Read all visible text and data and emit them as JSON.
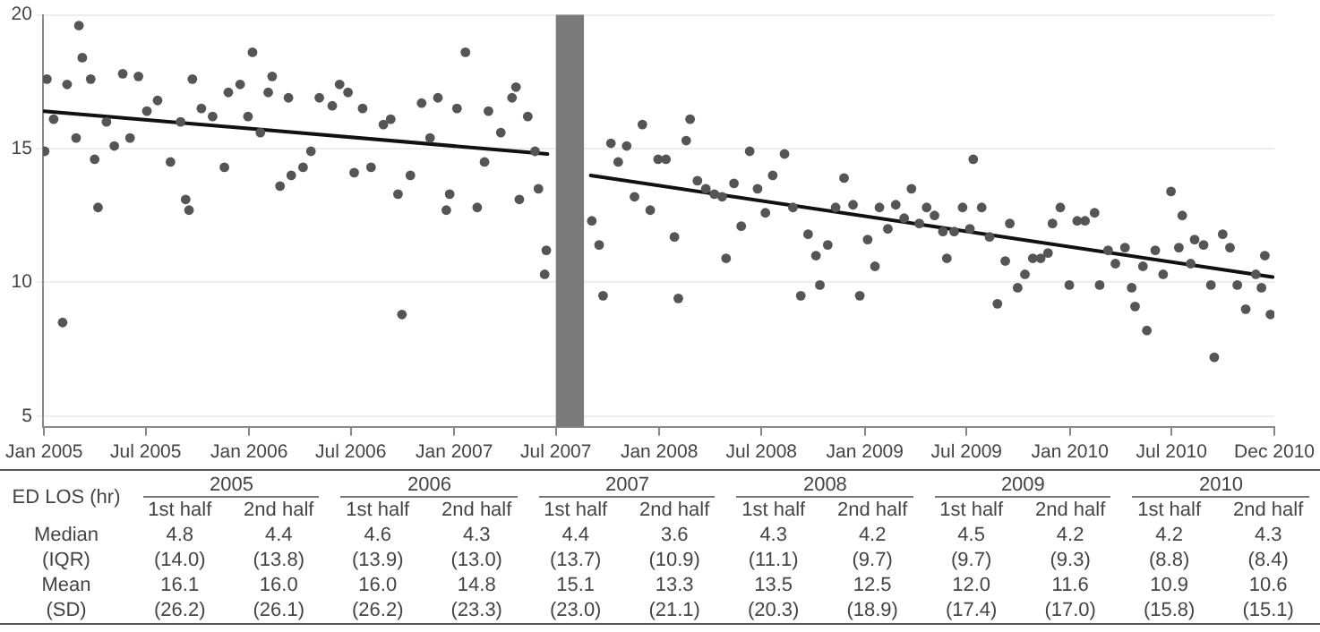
{
  "chart_data": [
    {
      "type": "scatter",
      "xlim": [
        "2004-12-30",
        "2010-12-31"
      ],
      "ylim": [
        4.6,
        20
      ],
      "yticks": [
        5,
        10,
        15,
        20
      ],
      "xticks": [
        {
          "value": "2005-01-01",
          "label": "Jan 2005"
        },
        {
          "value": "2005-07-01",
          "label": "Jul 2005"
        },
        {
          "value": "2006-01-01",
          "label": "Jan 2006"
        },
        {
          "value": "2006-07-01",
          "label": "Jul 2006"
        },
        {
          "value": "2007-01-01",
          "label": "Jan 2007"
        },
        {
          "value": "2007-07-01",
          "label": "Jul 2007"
        },
        {
          "value": "2008-01-01",
          "label": "Jan 2008"
        },
        {
          "value": "2008-07-01",
          "label": "Jul 2008"
        },
        {
          "value": "2009-01-01",
          "label": "Jan 2009"
        },
        {
          "value": "2009-07-01",
          "label": "Jul 2009"
        },
        {
          "value": "2010-01-01",
          "label": "Jan 2010"
        },
        {
          "value": "2010-07-01",
          "label": "Jul 2010"
        },
        {
          "value": "2010-12-31",
          "label": "Dec 2010"
        }
      ],
      "grid": "y",
      "marker": "circle",
      "bands": [
        {
          "axis": "x",
          "from": "2007-07-01",
          "to": "2007-08-20",
          "color": "#7a7a7a"
        }
      ],
      "series": [
        {
          "type": "scatter",
          "color": "#555555",
          "x": [
            "2005-01-02",
            "2005-01-06",
            "2005-01-18",
            "2005-02-03",
            "2005-02-11",
            "2005-02-27",
            "2005-03-04",
            "2005-03-10",
            "2005-03-25",
            "2005-04-01",
            "2005-04-07",
            "2005-04-22",
            "2005-05-06",
            "2005-05-21",
            "2005-06-03",
            "2005-06-18",
            "2005-07-03",
            "2005-07-22",
            "2005-08-14",
            "2005-09-01",
            "2005-09-10",
            "2005-09-16",
            "2005-09-22",
            "2005-10-08",
            "2005-10-28",
            "2005-11-18",
            "2005-11-25",
            "2005-12-16",
            "2005-12-30",
            "2006-01-07",
            "2006-01-21",
            "2006-02-04",
            "2006-02-11",
            "2006-02-25",
            "2006-03-12",
            "2006-03-17",
            "2006-04-07",
            "2006-04-21",
            "2006-05-06",
            "2006-05-29",
            "2006-06-11",
            "2006-06-26",
            "2006-07-07",
            "2006-07-22",
            "2006-08-06",
            "2006-08-28",
            "2006-09-10",
            "2006-09-23",
            "2006-09-30",
            "2006-10-15",
            "2006-11-04",
            "2006-11-19",
            "2006-12-03",
            "2006-12-18",
            "2006-12-24",
            "2007-01-06",
            "2007-01-21",
            "2007-02-11",
            "2007-02-24",
            "2007-03-03",
            "2007-03-25",
            "2007-04-14",
            "2007-04-21",
            "2007-04-27",
            "2007-05-12",
            "2007-05-25",
            "2007-05-31",
            "2007-06-11",
            "2007-06-14",
            "2007-09-03",
            "2007-09-16",
            "2007-09-23",
            "2007-10-07",
            "2007-10-20",
            "2007-11-04",
            "2007-11-18",
            "2007-12-02",
            "2007-12-16",
            "2007-12-30",
            "2008-01-13",
            "2008-01-28",
            "2008-02-04",
            "2008-02-18",
            "2008-02-25",
            "2008-03-09",
            "2008-03-24",
            "2008-04-08",
            "2008-04-22",
            "2008-04-29",
            "2008-05-13",
            "2008-05-26",
            "2008-06-10",
            "2008-06-24",
            "2008-07-08",
            "2008-07-21",
            "2008-08-11",
            "2008-08-26",
            "2008-09-09",
            "2008-09-22",
            "2008-10-06",
            "2008-10-13",
            "2008-10-27",
            "2008-11-10",
            "2008-11-25",
            "2008-12-11",
            "2008-12-23",
            "2009-01-06",
            "2009-01-19",
            "2009-01-27",
            "2009-02-11",
            "2009-02-25",
            "2009-03-12",
            "2009-03-25",
            "2009-04-08",
            "2009-04-21",
            "2009-05-05",
            "2009-05-20",
            "2009-05-27",
            "2009-06-09",
            "2009-06-24",
            "2009-07-07",
            "2009-07-13",
            "2009-07-28",
            "2009-08-11",
            "2009-08-25",
            "2009-09-08",
            "2009-09-16",
            "2009-09-30",
            "2009-10-13",
            "2009-10-27",
            "2009-11-10",
            "2009-11-23",
            "2009-12-01",
            "2009-12-15",
            "2009-12-31",
            "2010-01-14",
            "2010-01-28",
            "2010-02-14",
            "2010-02-23",
            "2010-03-10",
            "2010-03-23",
            "2010-04-09",
            "2010-04-21",
            "2010-04-27",
            "2010-05-11",
            "2010-05-18",
            "2010-06-02",
            "2010-06-16",
            "2010-06-30",
            "2010-07-14",
            "2010-07-20",
            "2010-08-04",
            "2010-08-11",
            "2010-08-27",
            "2010-09-09",
            "2010-09-15",
            "2010-09-30",
            "2010-10-13",
            "2010-10-26",
            "2010-11-10",
            "2010-11-28",
            "2010-12-08",
            "2010-12-14",
            "2010-12-24"
          ],
          "values": [
            14.9,
            17.6,
            16.1,
            8.5,
            17.4,
            15.4,
            19.6,
            18.4,
            17.6,
            14.6,
            12.8,
            16.0,
            15.1,
            17.8,
            15.4,
            17.7,
            16.4,
            16.8,
            14.5,
            16.0,
            13.1,
            12.7,
            17.6,
            16.5,
            16.2,
            14.3,
            17.1,
            17.4,
            16.2,
            18.6,
            15.6,
            17.1,
            17.7,
            13.6,
            16.9,
            14.0,
            14.3,
            14.9,
            16.9,
            16.6,
            17.4,
            17.1,
            14.1,
            16.5,
            14.3,
            15.9,
            16.1,
            13.3,
            8.8,
            14.0,
            16.7,
            15.4,
            16.9,
            12.7,
            13.3,
            16.5,
            18.6,
            12.8,
            14.5,
            16.4,
            15.6,
            16.9,
            17.3,
            13.1,
            16.2,
            14.9,
            13.5,
            10.3,
            11.2,
            12.3,
            11.4,
            9.5,
            15.2,
            14.5,
            15.1,
            13.2,
            15.9,
            12.7,
            14.6,
            14.6,
            11.7,
            9.4,
            15.3,
            16.1,
            13.8,
            13.5,
            13.3,
            13.2,
            10.9,
            13.7,
            12.1,
            14.9,
            13.5,
            12.6,
            14.0,
            14.8,
            12.8,
            9.5,
            11.8,
            11.0,
            9.9,
            11.4,
            12.8,
            13.9,
            12.9,
            9.5,
            11.6,
            10.6,
            12.8,
            12.0,
            12.9,
            12.4,
            13.5,
            12.2,
            12.8,
            12.5,
            11.9,
            10.9,
            11.9,
            12.8,
            12.0,
            14.6,
            12.8,
            11.7,
            9.2,
            10.8,
            12.2,
            9.8,
            10.3,
            10.9,
            10.9,
            11.1,
            12.2,
            12.8,
            9.9,
            12.3,
            12.3,
            12.6,
            9.9,
            11.2,
            10.7,
            11.3,
            9.8,
            9.1,
            10.6,
            8.2,
            11.2,
            10.3,
            13.4,
            11.3,
            12.5,
            10.7,
            11.6,
            11.4,
            9.9,
            7.2,
            11.8,
            11.3,
            9.9,
            9.0,
            10.3,
            9.8,
            11.0,
            8.8
          ]
        },
        {
          "type": "line",
          "color": "#111111",
          "marker": "none",
          "x": [
            "2005-01-01",
            "2007-06-16"
          ],
          "values": [
            16.4,
            14.8
          ]
        },
        {
          "type": "line",
          "color": "#111111",
          "marker": "none",
          "x": [
            "2007-09-01",
            "2010-12-28"
          ],
          "values": [
            14.0,
            10.2
          ]
        }
      ]
    },
    {
      "type": "heatmap",
      "ylabel": "ED LOS (hr)",
      "annotations": [
        "2005",
        "2006",
        "2007",
        "2008",
        "2009",
        "2010"
      ],
      "categories": [
        "1st half",
        "2nd half",
        "1st half",
        "2nd half",
        "1st half",
        "2nd half",
        "1st half",
        "2nd half",
        "1st half",
        "2nd half",
        "1st half",
        "2nd half"
      ],
      "y_categories": [
        "Median",
        "(IQR)",
        "Mean",
        "(SD)"
      ],
      "cells": [
        [
          4.8,
          4.4,
          4.6,
          4.3,
          4.4,
          3.6,
          4.3,
          4.2,
          4.5,
          4.2,
          4.2,
          4.3
        ],
        [
          14.0,
          13.8,
          13.9,
          13.0,
          13.7,
          10.9,
          11.1,
          9.7,
          9.7,
          9.3,
          8.8,
          8.4
        ],
        [
          16.1,
          16.0,
          16.0,
          14.8,
          15.1,
          13.3,
          13.5,
          12.5,
          12.0,
          11.6,
          10.9,
          10.6
        ],
        [
          26.2,
          26.1,
          26.2,
          23.3,
          23.0,
          21.1,
          20.3,
          18.9,
          17.4,
          17.0,
          15.8,
          15.1
        ]
      ],
      "cell_labels": [
        [
          "4.8",
          "4.4",
          "4.6",
          "4.3",
          "4.4",
          "3.6",
          "4.3",
          "4.2",
          "4.5",
          "4.2",
          "4.2",
          "4.3"
        ],
        [
          "(14.0)",
          "(13.8)",
          "(13.9)",
          "(13.0)",
          "(13.7)",
          "(10.9)",
          "(11.1)",
          "(9.7)",
          "(9.7)",
          "(9.3)",
          "(8.8)",
          "(8.4)"
        ],
        [
          "16.1",
          "16.0",
          "16.0",
          "14.8",
          "15.1",
          "13.3",
          "13.5",
          "12.5",
          "12.0",
          "11.6",
          "10.9",
          "10.6"
        ],
        [
          "(26.2)",
          "(26.1)",
          "(26.2)",
          "(23.3)",
          "(23.0)",
          "(21.1)",
          "(20.3)",
          "(18.9)",
          "(17.4)",
          "(17.0)",
          "(15.8)",
          "(15.1)"
        ]
      ]
    }
  ]
}
